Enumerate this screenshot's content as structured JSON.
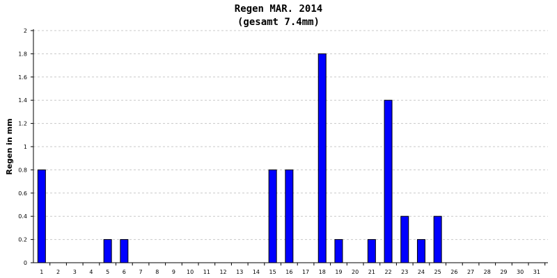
{
  "chart_data": {
    "type": "bar",
    "title": "Regen MAR. 2014",
    "subtitle": "(gesamt 7.4mm)",
    "xlabel": "",
    "ylabel": "Regen in mm",
    "ylim": [
      0,
      2
    ],
    "y_ticks": [
      "0",
      "0.2",
      "0.4",
      "0.6",
      "0.8",
      "1",
      "1.2",
      "1.4",
      "1.6",
      "1.8",
      "2"
    ],
    "grid": true,
    "categories": [
      "1",
      "2",
      "3",
      "4",
      "5",
      "6",
      "7",
      "8",
      "9",
      "10",
      "11",
      "12",
      "13",
      "14",
      "15",
      "16",
      "17",
      "18",
      "19",
      "20",
      "21",
      "22",
      "23",
      "24",
      "25",
      "26",
      "27",
      "28",
      "29",
      "30",
      "31"
    ],
    "values": [
      0.8,
      0,
      0,
      0,
      0.2,
      0.2,
      0,
      0,
      0,
      0,
      0,
      0,
      0,
      0,
      0.8,
      0.8,
      0,
      1.8,
      0.2,
      0,
      0.2,
      1.4,
      0.4,
      0.2,
      0.4,
      0,
      0,
      0,
      0,
      0,
      0
    ],
    "colors": {
      "bar_fill": "#0000ff",
      "bar_stroke": "#000000",
      "grid": "#c8c8c8",
      "axis": "#000000"
    }
  }
}
